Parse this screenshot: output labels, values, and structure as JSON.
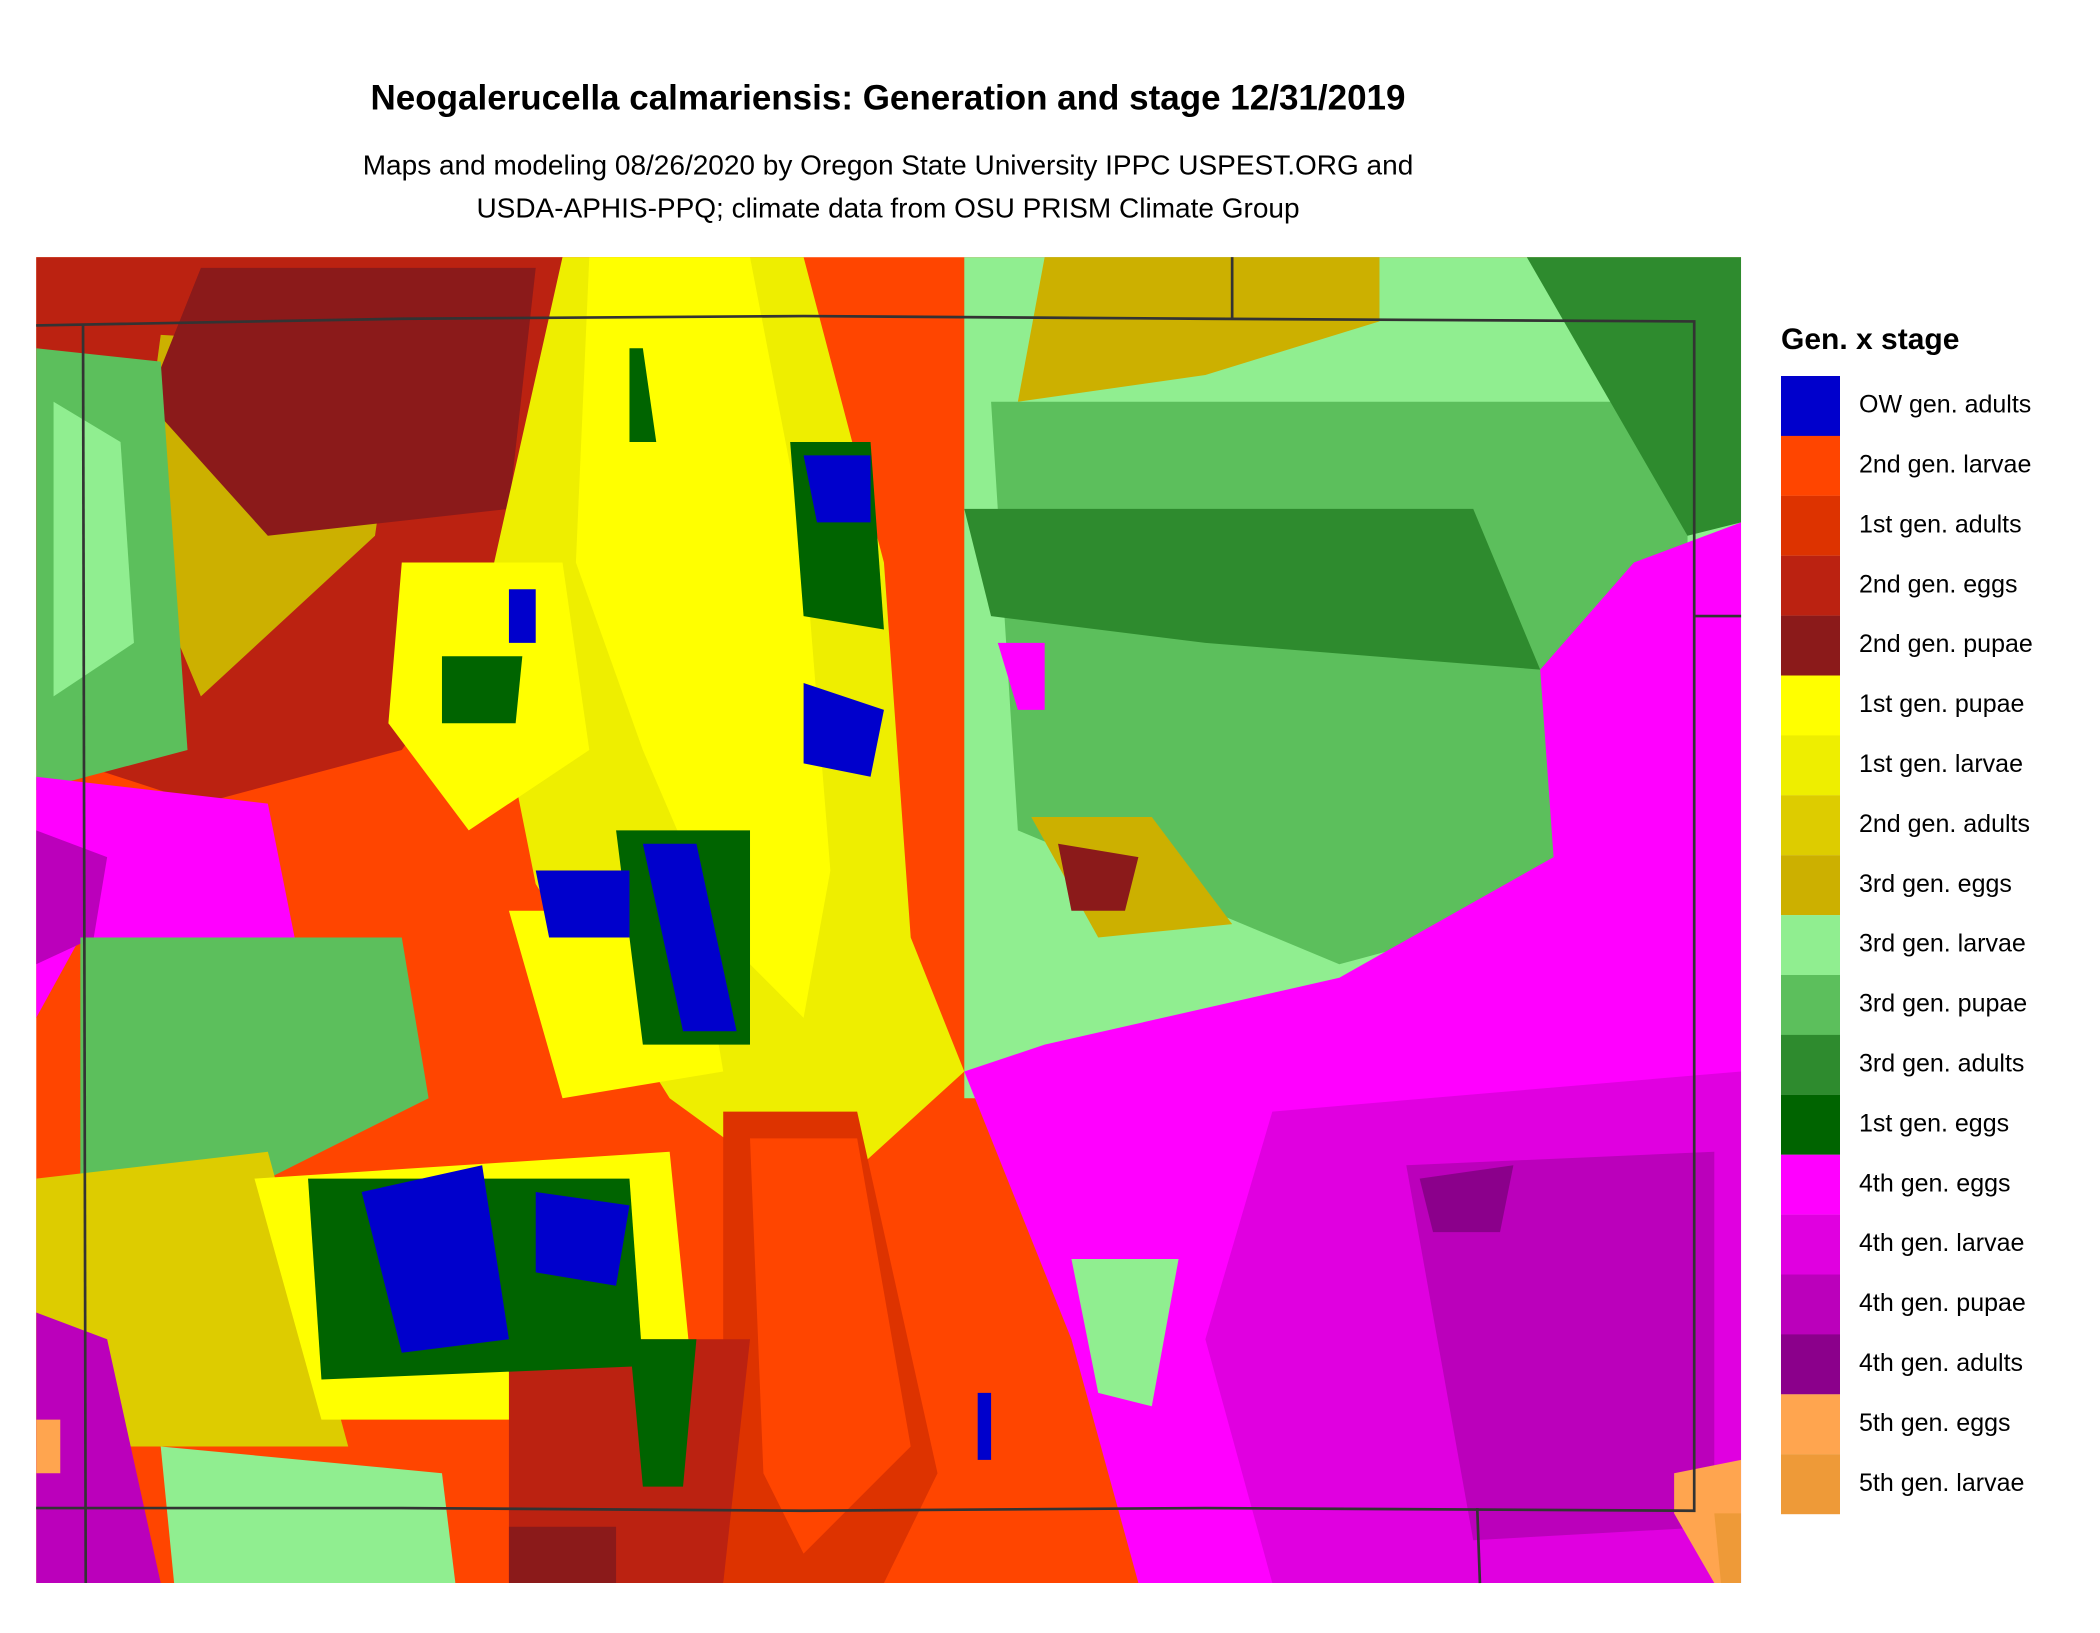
{
  "header": {
    "title": "Neogalerucella calmariensis: Generation and stage 12/31/2019",
    "subtitle_lines": [
      "Maps and modeling 08/26/2020 by Oregon State University IPPC USPEST.ORG and",
      "USDA-APHIS-PPQ; climate data from OSU PRISM Climate Group"
    ]
  },
  "legend": {
    "title": "Gen. x stage",
    "items": [
      {
        "label": "OW gen. adults",
        "color": "#0000cc"
      },
      {
        "label": "2nd gen. larvae",
        "color": "#ff4500"
      },
      {
        "label": "1st gen. adults",
        "color": "#dd3300"
      },
      {
        "label": "2nd gen. eggs",
        "color": "#bb2211"
      },
      {
        "label": "2nd gen. pupae",
        "color": "#8b1a1a"
      },
      {
        "label": "1st gen. pupae",
        "color": "#ffff00"
      },
      {
        "label": "1st gen. larvae",
        "color": "#eeee00"
      },
      {
        "label": "2nd gen. adults",
        "color": "#ddcc00"
      },
      {
        "label": "3rd gen. eggs",
        "color": "#ccb000"
      },
      {
        "label": "3rd gen. larvae",
        "color": "#90ee90"
      },
      {
        "label": "3rd gen. pupae",
        "color": "#5cbf5c"
      },
      {
        "label": "3rd gen. adults",
        "color": "#2e8b2e"
      },
      {
        "label": "1st gen. eggs",
        "color": "#006400"
      },
      {
        "label": "4th gen. eggs",
        "color": "#ff00ff"
      },
      {
        "label": "4th gen. larvae",
        "color": "#e000e0"
      },
      {
        "label": "4th gen. pupae",
        "color": "#bb00bb"
      },
      {
        "label": "4th gen. adults",
        "color": "#8b008b"
      },
      {
        "label": "5th gen. eggs",
        "color": "#ffa54f"
      },
      {
        "label": "5th gen. larvae",
        "color": "#ee9a38"
      }
    ]
  }
}
